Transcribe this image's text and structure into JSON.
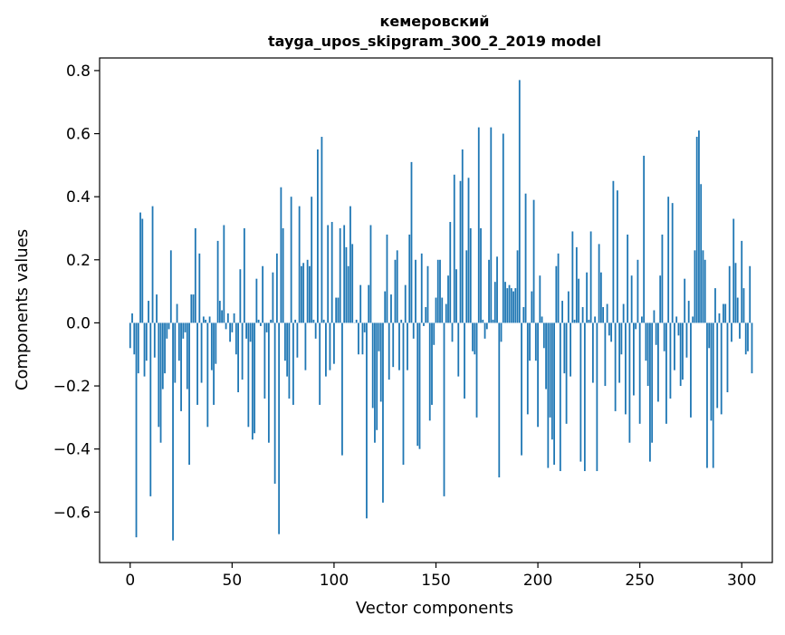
{
  "chart_data": {
    "type": "bar",
    "title": "кемеровский",
    "subtitle": "tayga_upos_skipgram_300_2_2019 model",
    "xlabel": "Vector components",
    "ylabel": "Components values",
    "xlim": [
      -15,
      315
    ],
    "ylim": [
      -0.76,
      0.84
    ],
    "xticks": [
      0,
      50,
      100,
      150,
      200,
      250,
      300
    ],
    "xtick_labels": [
      "0",
      "50",
      "100",
      "150",
      "200",
      "250",
      "300"
    ],
    "yticks": [
      -0.6,
      -0.4,
      -0.2,
      0.0,
      0.2,
      0.4,
      0.6,
      0.8
    ],
    "ytick_labels": [
      "−0.6",
      "−0.4",
      "−0.2",
      "0.0",
      "0.2",
      "0.4",
      "0.6",
      "0.8"
    ],
    "grid": false,
    "bar_color": "#1f77b4",
    "values": [
      -0.08,
      0.03,
      -0.1,
      -0.68,
      -0.16,
      0.35,
      0.33,
      -0.17,
      -0.12,
      0.07,
      -0.55,
      0.37,
      -0.11,
      0.09,
      -0.33,
      -0.38,
      -0.21,
      -0.16,
      -0.05,
      -0.02,
      0.23,
      -0.69,
      -0.19,
      0.06,
      -0.12,
      -0.28,
      -0.05,
      -0.03,
      -0.21,
      -0.45,
      0.09,
      0.09,
      0.3,
      -0.26,
      0.22,
      -0.19,
      0.02,
      0.01,
      -0.33,
      0.02,
      -0.15,
      -0.26,
      -0.13,
      0.26,
      0.07,
      0.04,
      0.31,
      -0.02,
      0.03,
      -0.06,
      -0.03,
      0.03,
      -0.1,
      -0.22,
      0.17,
      -0.18,
      0.3,
      -0.05,
      -0.33,
      -0.06,
      -0.37,
      -0.35,
      0.14,
      0.01,
      -0.01,
      0.18,
      -0.24,
      -0.03,
      -0.38,
      0.01,
      0.16,
      -0.51,
      0.22,
      -0.67,
      0.43,
      0.3,
      -0.12,
      -0.17,
      -0.24,
      0.4,
      -0.26,
      0.01,
      -0.11,
      0.37,
      0.18,
      0.19,
      -0.15,
      0.2,
      0.18,
      0.4,
      0.01,
      -0.05,
      0.55,
      -0.26,
      0.59,
      0.01,
      -0.17,
      0.31,
      -0.15,
      0.32,
      -0.13,
      0.08,
      0.08,
      0.3,
      -0.42,
      0.31,
      0.24,
      0.18,
      0.37,
      0.25,
      0.0,
      0.01,
      -0.1,
      0.12,
      -0.1,
      -0.03,
      -0.62,
      0.12,
      0.31,
      -0.27,
      -0.38,
      -0.34,
      -0.09,
      -0.25,
      -0.57,
      0.1,
      0.28,
      -0.18,
      0.09,
      -0.14,
      0.2,
      0.23,
      -0.15,
      0.01,
      -0.45,
      0.12,
      -0.15,
      0.28,
      0.51,
      -0.05,
      0.2,
      -0.39,
      -0.4,
      0.22,
      -0.01,
      0.05,
      0.18,
      -0.31,
      -0.26,
      -0.07,
      0.08,
      0.2,
      0.2,
      0.08,
      -0.55,
      0.06,
      0.15,
      0.32,
      -0.06,
      0.47,
      0.17,
      -0.17,
      0.45,
      0.55,
      -0.24,
      0.23,
      0.46,
      0.3,
      -0.09,
      -0.1,
      -0.3,
      0.62,
      0.3,
      0.01,
      -0.05,
      -0.02,
      0.2,
      0.62,
      0.01,
      0.13,
      0.21,
      -0.49,
      -0.06,
      0.6,
      0.13,
      0.11,
      0.12,
      0.11,
      0.1,
      0.11,
      0.23,
      0.77,
      -0.42,
      0.05,
      0.41,
      -0.29,
      -0.12,
      0.1,
      0.39,
      -0.12,
      -0.33,
      0.15,
      0.02,
      -0.08,
      -0.21,
      -0.46,
      -0.3,
      -0.37,
      -0.45,
      0.18,
      0.22,
      -0.47,
      0.07,
      -0.16,
      -0.32,
      0.1,
      -0.17,
      0.29,
      0.01,
      0.24,
      0.14,
      -0.44,
      0.05,
      -0.47,
      0.16,
      0.01,
      0.29,
      -0.19,
      0.02,
      -0.47,
      0.25,
      0.16,
      0.05,
      -0.2,
      0.06,
      -0.04,
      -0.06,
      0.45,
      -0.28,
      0.42,
      -0.19,
      -0.1,
      0.06,
      -0.29,
      0.28,
      -0.38,
      0.15,
      -0.23,
      -0.02,
      0.2,
      -0.32,
      0.02,
      0.53,
      -0.12,
      -0.2,
      -0.44,
      -0.38,
      0.04,
      -0.07,
      -0.25,
      0.15,
      0.28,
      -0.09,
      -0.32,
      0.4,
      -0.24,
      0.38,
      -0.15,
      0.02,
      -0.04,
      -0.2,
      -0.18,
      0.14,
      -0.11,
      0.07,
      -0.3,
      0.02,
      0.23,
      0.59,
      0.61,
      0.44,
      0.23,
      0.2,
      -0.46,
      -0.08,
      -0.31,
      -0.46,
      0.11,
      -0.27,
      0.03,
      -0.29,
      0.06,
      0.06,
      -0.22,
      0.18,
      -0.06,
      0.33,
      0.19,
      0.08,
      -0.05,
      0.26,
      0.11,
      -0.1,
      -0.09,
      0.18,
      -0.16
    ]
  }
}
